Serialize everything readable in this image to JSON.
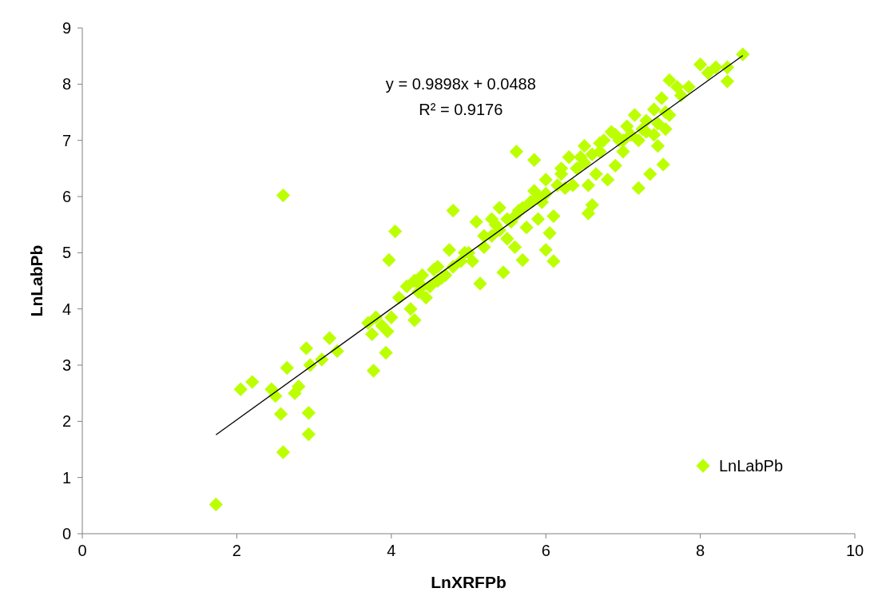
{
  "chart_data": {
    "type": "scatter",
    "xlabel": "LnXRFPb",
    "ylabel": "LnLabPb",
    "xlim": [
      0,
      10
    ],
    "ylim": [
      0,
      9
    ],
    "xticks": [
      0,
      2,
      4,
      6,
      8,
      10
    ],
    "yticks": [
      0,
      1,
      2,
      3,
      4,
      5,
      6,
      7,
      8,
      9
    ],
    "grid": false,
    "legend": "bottom right",
    "annotations": [
      "y = 0.9898x + 0.0488",
      "R² = 0.9176"
    ],
    "series": [
      {
        "name": "LnLabPb",
        "color": "#bbff00",
        "marker": "diamond",
        "x": [
          1.73,
          2.6,
          2.93,
          2.57,
          2.93,
          2.05,
          2.2,
          2.45,
          2.5,
          2.75,
          2.8,
          2.65,
          2.9,
          2.95,
          3.1,
          3.2,
          3.3,
          3.93,
          3.77,
          3.7,
          3.75,
          3.8,
          3.88,
          3.95,
          4.0,
          3.97,
          4.05,
          2.6,
          4.3,
          4.1,
          4.25,
          4.2,
          4.3,
          4.4,
          4.35,
          4.45,
          4.5,
          4.55,
          4.6,
          4.7,
          4.75,
          4.8,
          4.8,
          4.9,
          5.0,
          5.05,
          5.1,
          5.15,
          5.2,
          5.3,
          5.35,
          5.4,
          5.45,
          5.5,
          5.5,
          5.6,
          5.65,
          5.7,
          5.75,
          5.8,
          5.85,
          5.62,
          5.9,
          5.95,
          6.0,
          6.0,
          6.05,
          6.1,
          6.1,
          6.15,
          6.2,
          6.3,
          6.35,
          6.4,
          6.5,
          6.5,
          6.55,
          6.55,
          6.6,
          6.65,
          6.7,
          6.75,
          6.8,
          6.85,
          6.9,
          6.95,
          7.0,
          7.05,
          7.1,
          7.15,
          7.2,
          7.25,
          7.3,
          7.35,
          7.4,
          7.45,
          7.45,
          7.5,
          7.52,
          7.55,
          7.6,
          7.6,
          7.75,
          7.85,
          8.0,
          8.1,
          8.2,
          8.35,
          8.35,
          8.55,
          7.7,
          7.0,
          6.9,
          6.6,
          6.2,
          5.9,
          5.6,
          5.4,
          5.2,
          4.6,
          4.4,
          4.65,
          5.85,
          6.7,
          7.2,
          7.3,
          7.4,
          7.55,
          6.45,
          6.25,
          5.7,
          5.55,
          5.3,
          4.95,
          4.3,
          6.0
        ],
        "values": [
          0.52,
          1.45,
          1.77,
          2.13,
          2.15,
          2.57,
          2.7,
          2.57,
          2.45,
          2.5,
          2.62,
          2.95,
          3.3,
          3.0,
          3.1,
          3.48,
          3.25,
          3.22,
          2.9,
          3.75,
          3.55,
          3.85,
          3.7,
          3.6,
          3.85,
          4.87,
          5.38,
          6.02,
          3.8,
          4.2,
          4.0,
          4.4,
          4.5,
          4.6,
          4.3,
          4.2,
          4.4,
          4.7,
          4.5,
          4.6,
          5.05,
          4.75,
          5.75,
          4.85,
          5.0,
          4.85,
          5.55,
          4.45,
          5.1,
          5.3,
          5.5,
          5.8,
          4.65,
          5.25,
          5.6,
          5.1,
          5.75,
          4.87,
          5.45,
          5.9,
          6.65,
          6.8,
          5.6,
          5.9,
          6.05,
          5.05,
          5.35,
          5.65,
          4.85,
          6.2,
          6.4,
          6.7,
          6.2,
          6.5,
          6.6,
          6.9,
          6.2,
          5.7,
          5.85,
          6.4,
          6.8,
          7.0,
          6.3,
          7.15,
          6.55,
          7.0,
          6.8,
          7.25,
          7.1,
          7.45,
          6.15,
          7.2,
          7.35,
          6.4,
          7.55,
          6.9,
          7.3,
          7.75,
          6.57,
          7.2,
          8.07,
          7.45,
          7.8,
          7.95,
          8.35,
          8.2,
          8.3,
          8.05,
          8.3,
          8.53,
          7.95,
          7.0,
          7.1,
          6.75,
          6.5,
          6.0,
          5.65,
          5.4,
          5.3,
          4.75,
          4.4,
          4.55,
          6.1,
          6.95,
          7.0,
          7.15,
          7.1,
          7.5,
          6.7,
          6.15,
          5.8,
          5.55,
          5.6,
          5.0,
          4.5,
          6.3
        ]
      },
      {
        "type": "line",
        "color": "#000000",
        "x": [
          1.73,
          8.55
        ],
        "values": [
          1.76,
          8.51
        ]
      }
    ]
  }
}
